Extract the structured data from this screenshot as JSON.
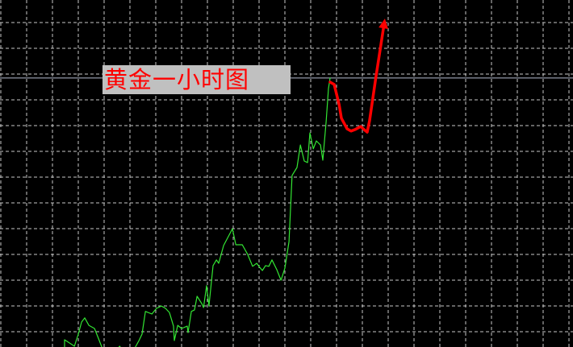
{
  "chart_data": {
    "type": "line",
    "title": "黄金一小时图",
    "xlabel": "",
    "ylabel": "",
    "units_note_hidden": null,
    "grid": true,
    "grid_style": "dashed",
    "background": "#000000",
    "grid_color": "#c8c8c8",
    "level_line": {
      "y": 10.44,
      "color": "#b4bcd0"
    },
    "label_box": {
      "text": "黄金一小时图",
      "background": "#c0c0c0",
      "color": "#ff0000"
    },
    "xlim": [
      0,
      22.2
    ],
    "ylim": [
      0,
      13.47
    ],
    "series": [
      {
        "style": "price",
        "color": "#33e633",
        "points": [
          [
            2.5,
            0.0
          ],
          [
            2.5,
            0.28
          ],
          [
            2.88,
            0.03
          ],
          [
            3.03,
            0.5
          ],
          [
            3.16,
            0.97
          ],
          [
            3.28,
            1.13
          ],
          [
            3.44,
            0.84
          ],
          [
            3.66,
            0.72
          ],
          [
            3.81,
            0.34
          ],
          [
            3.94,
            0.0
          ],
          [
            4.25,
            -0.44
          ],
          [
            4.63,
            0.03
          ],
          [
            5.0,
            -0.44
          ],
          [
            5.38,
            0.25
          ],
          [
            5.5,
            0.5
          ],
          [
            5.63,
            1.38
          ],
          [
            5.88,
            1.28
          ],
          [
            6.06,
            1.5
          ],
          [
            6.25,
            1.59
          ],
          [
            6.41,
            1.5
          ],
          [
            6.56,
            1.34
          ],
          [
            6.72,
            0.81
          ],
          [
            6.75,
            0.25
          ],
          [
            6.88,
            0.84
          ],
          [
            7.03,
            0.72
          ],
          [
            7.25,
            0.81
          ],
          [
            7.28,
            0.56
          ],
          [
            7.41,
            1.38
          ],
          [
            7.53,
            1.44
          ],
          [
            7.63,
            1.97
          ],
          [
            7.81,
            1.69
          ],
          [
            7.88,
            1.53
          ],
          [
            8.0,
            2.38
          ],
          [
            8.09,
            1.59
          ],
          [
            8.25,
            3.16
          ],
          [
            8.38,
            3.38
          ],
          [
            8.47,
            3.25
          ],
          [
            8.66,
            3.94
          ],
          [
            9.0,
            4.59
          ],
          [
            9.13,
            3.97
          ],
          [
            9.38,
            3.97
          ],
          [
            9.59,
            3.59
          ],
          [
            9.78,
            3.13
          ],
          [
            9.94,
            3.25
          ],
          [
            10.06,
            3.09
          ],
          [
            10.16,
            2.97
          ],
          [
            10.28,
            3.16
          ],
          [
            10.41,
            3.13
          ],
          [
            10.53,
            3.38
          ],
          [
            10.72,
            3.0
          ],
          [
            10.88,
            2.59
          ],
          [
            11.03,
            3.06
          ],
          [
            11.19,
            4.09
          ],
          [
            11.31,
            6.66
          ],
          [
            11.5,
            6.97
          ],
          [
            11.63,
            7.84
          ],
          [
            11.78,
            7.22
          ],
          [
            11.91,
            7.16
          ],
          [
            12.0,
            8.31
          ],
          [
            12.13,
            7.69
          ],
          [
            12.25,
            8.0
          ],
          [
            12.41,
            7.84
          ],
          [
            12.5,
            7.25
          ],
          [
            12.63,
            8.78
          ],
          [
            12.72,
            10.03
          ],
          [
            12.78,
            10.44
          ]
        ]
      },
      {
        "style": "hand-drawn-forecast-arrow",
        "color": "#ff0000",
        "points": [
          [
            12.78,
            10.28
          ],
          [
            12.94,
            10.19
          ],
          [
            13.13,
            9.41
          ],
          [
            13.22,
            8.88
          ],
          [
            13.44,
            8.47
          ],
          [
            13.59,
            8.38
          ],
          [
            13.75,
            8.44
          ],
          [
            13.97,
            8.56
          ],
          [
            14.13,
            8.41
          ],
          [
            14.22,
            8.34
          ],
          [
            14.31,
            8.78
          ],
          [
            14.56,
            10.5
          ],
          [
            14.88,
            12.59
          ]
        ]
      }
    ]
  }
}
